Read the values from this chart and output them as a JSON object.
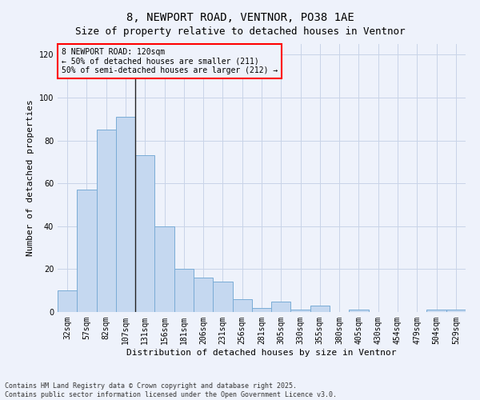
{
  "title": "8, NEWPORT ROAD, VENTNOR, PO38 1AE",
  "subtitle": "Size of property relative to detached houses in Ventnor",
  "xlabel": "Distribution of detached houses by size in Ventnor",
  "ylabel": "Number of detached properties",
  "bar_color": "#c5d8f0",
  "bar_edge_color": "#7aacd6",
  "background_color": "#eef2fb",
  "categories": [
    "32sqm",
    "57sqm",
    "82sqm",
    "107sqm",
    "131sqm",
    "156sqm",
    "181sqm",
    "206sqm",
    "231sqm",
    "256sqm",
    "281sqm",
    "305sqm",
    "330sqm",
    "355sqm",
    "380sqm",
    "405sqm",
    "430sqm",
    "454sqm",
    "479sqm",
    "504sqm",
    "529sqm"
  ],
  "values": [
    10,
    57,
    85,
    91,
    73,
    40,
    20,
    16,
    14,
    6,
    2,
    5,
    1,
    3,
    0,
    1,
    0,
    0,
    0,
    1,
    1
  ],
  "ylim": [
    0,
    125
  ],
  "yticks": [
    0,
    20,
    40,
    60,
    80,
    100,
    120
  ],
  "annotation_box_text": "8 NEWPORT ROAD: 120sqm\n← 50% of detached houses are smaller (211)\n50% of semi-detached houses are larger (212) →",
  "vline_x": 3.5,
  "footer": "Contains HM Land Registry data © Crown copyright and database right 2025.\nContains public sector information licensed under the Open Government Licence v3.0.",
  "grid_color": "#c8d4e8",
  "title_fontsize": 10,
  "subtitle_fontsize": 9,
  "tick_fontsize": 7,
  "ylabel_fontsize": 8,
  "xlabel_fontsize": 8,
  "annotation_fontsize": 7,
  "footer_fontsize": 6
}
